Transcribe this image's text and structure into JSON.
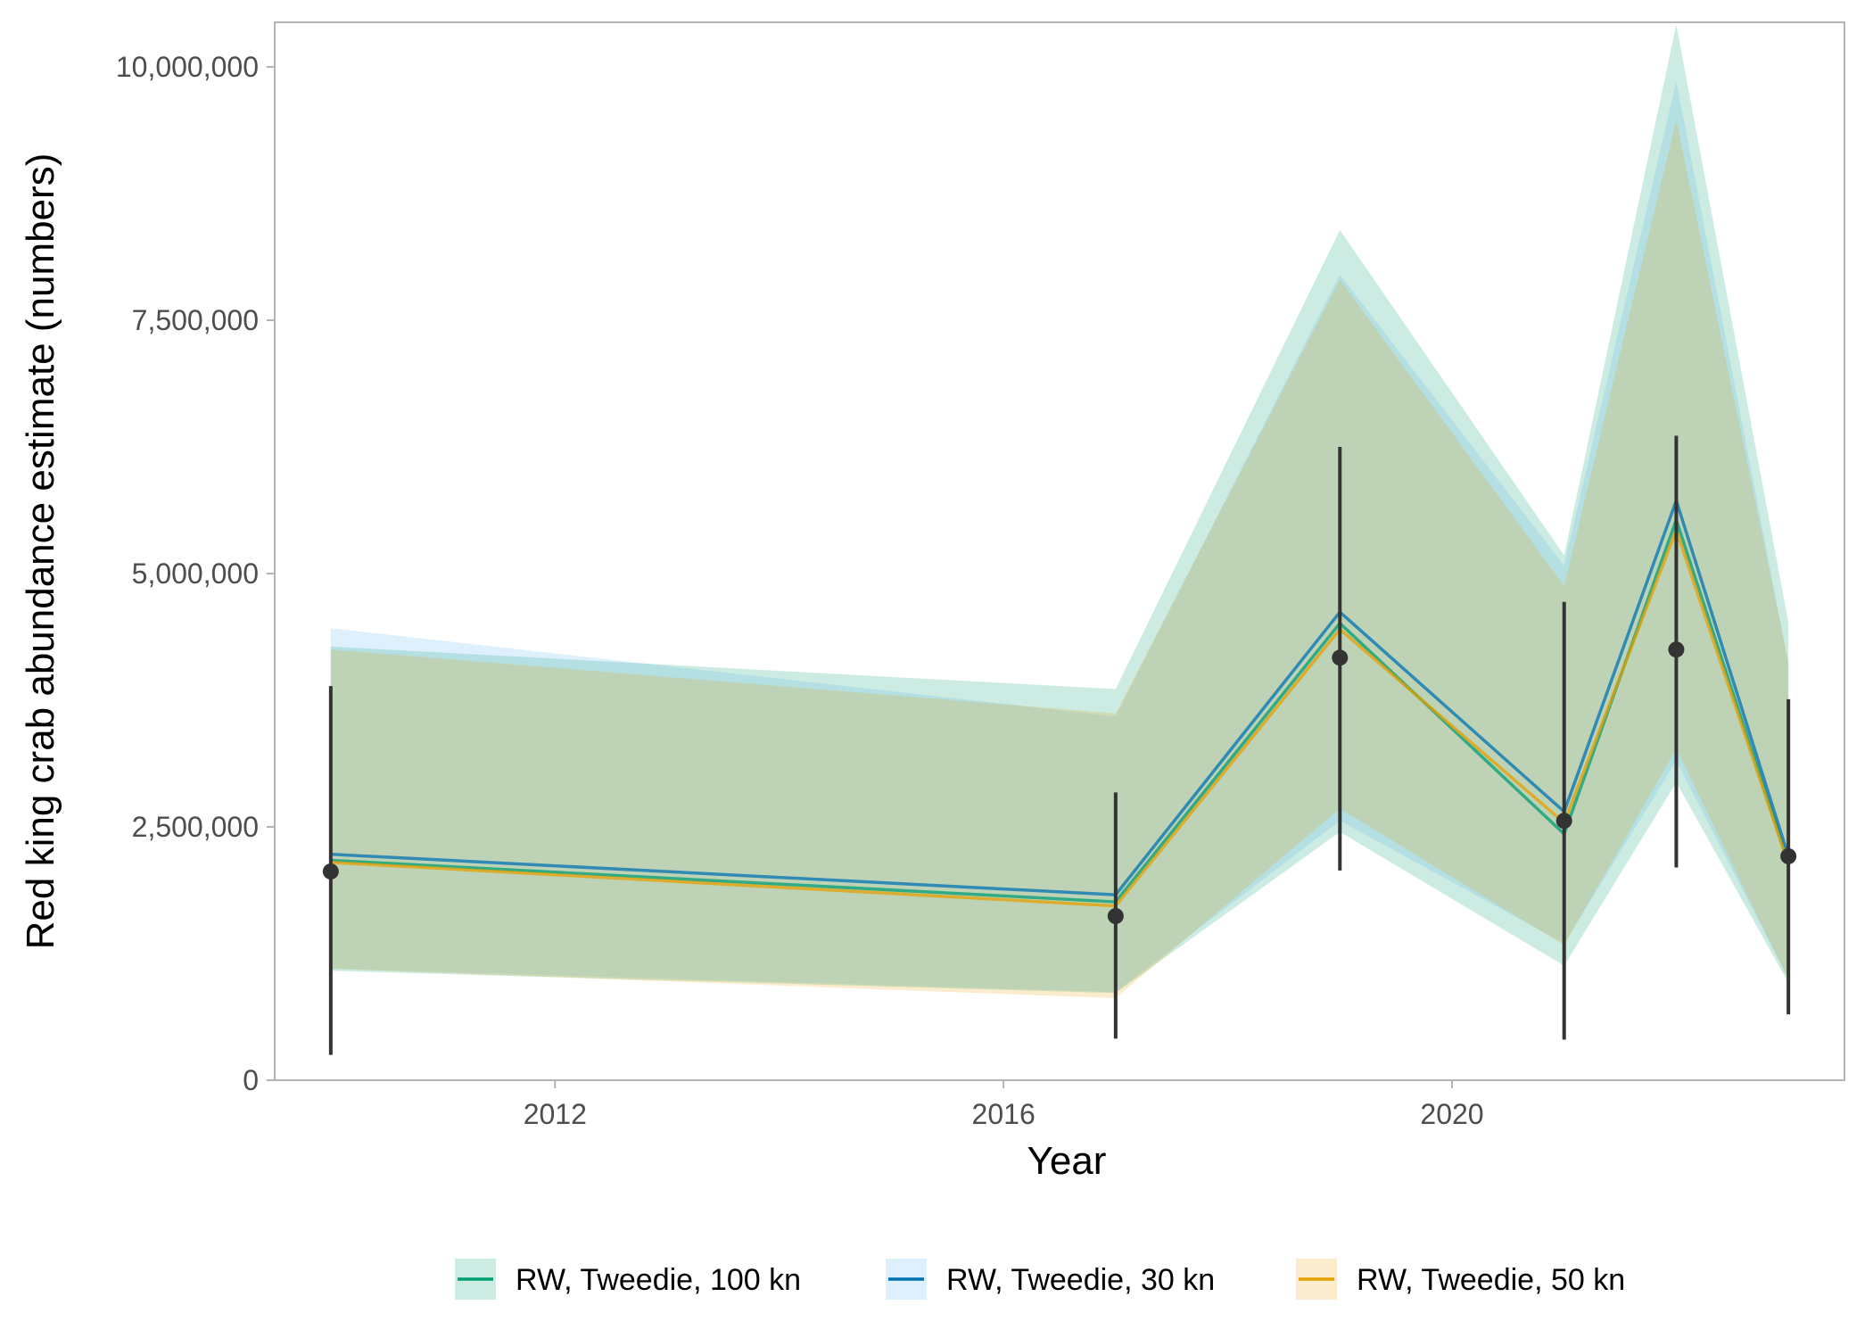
{
  "chart_data": {
    "type": "line",
    "title": "",
    "xlabel": "Year",
    "ylabel": "Red king crab abundance estimate (numbers)",
    "xlim": [
      2009.5,
      2023.5
    ],
    "ylim": [
      0,
      10450000
    ],
    "xticks": [
      2012,
      2016,
      2020
    ],
    "xtick_labels": [
      "2012",
      "2016",
      "2020"
    ],
    "yticks": [
      0,
      2500000,
      5000000,
      7500000,
      10000000
    ],
    "ytick_labels": [
      "0",
      "2,500,000",
      "5,000,000",
      "7,500,000",
      "10,000,000"
    ],
    "grid": false,
    "legend_position": "bottom",
    "x": [
      2010,
      2017,
      2019,
      2021,
      2022,
      2023
    ],
    "series": [
      {
        "name": "RW, Tweedie, 100 kn",
        "line_color": "#009E73",
        "band_color": "#009E73",
        "values": [
          2170000,
          1760000,
          4510000,
          2430000,
          5530000,
          2150000
        ],
        "lower": [
          1080000,
          860000,
          2450000,
          1130000,
          2940000,
          960000
        ],
        "upper": [
          4280000,
          3860000,
          8390000,
          5180000,
          10420000,
          4520000
        ]
      },
      {
        "name": "RW, Tweedie, 30 kn",
        "line_color": "#0072B2",
        "band_color": "#56B4E9",
        "values": [
          2230000,
          1830000,
          4620000,
          2650000,
          5720000,
          2210000
        ],
        "lower": [
          1100000,
          870000,
          2560000,
          1350000,
          3150000,
          1000000
        ],
        "upper": [
          4460000,
          3590000,
          7950000,
          5080000,
          9860000,
          4110000
        ]
      },
      {
        "name": "RW, Tweedie, 50 kn",
        "line_color": "#E69F00",
        "band_color": "#E69F00",
        "values": [
          2150000,
          1720000,
          4450000,
          2540000,
          5430000,
          2130000
        ],
        "lower": [
          1100000,
          810000,
          2680000,
          1330000,
          3270000,
          990000
        ],
        "upper": [
          4250000,
          3620000,
          7900000,
          4880000,
          9480000,
          4130000
        ]
      }
    ],
    "observations": {
      "values": [
        2060000,
        1620000,
        4170000,
        2560000,
        4250000,
        2210000
      ],
      "lower": [
        250000,
        410000,
        2070000,
        400000,
        2100000,
        650000
      ],
      "upper": [
        3890000,
        2840000,
        6250000,
        4720000,
        6360000,
        3760000
      ],
      "color": "#333333"
    }
  }
}
